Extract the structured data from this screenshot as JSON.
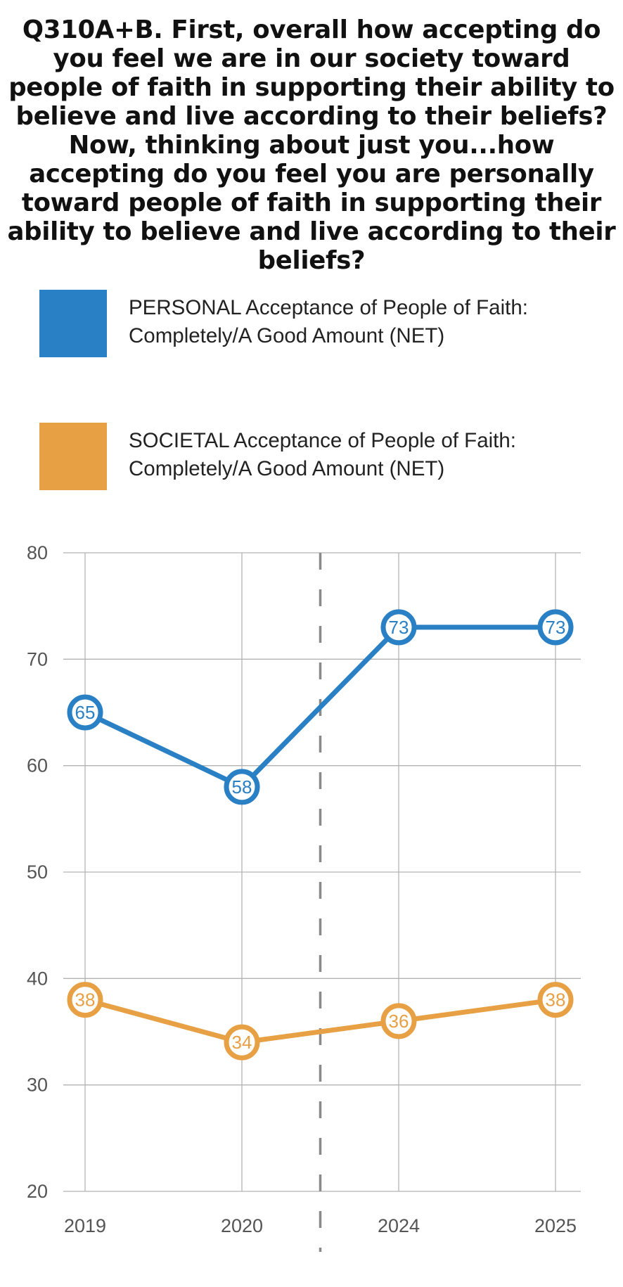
{
  "chart_data": {
    "type": "line",
    "title": "Q310A+B. First, overall how accepting do you feel we are in our society toward people of faith in supporting their ability to believe and live according to their beliefs?  Now, thinking about just you...how accepting do you feel you are personally toward people of faith in supporting their ability to believe and live according to their beliefs?",
    "categories": [
      "2019",
      "2020",
      "2024",
      "2025"
    ],
    "series": [
      {
        "name": "PERSONAL Acceptance of People of Faith: Completely/A Good Amount (NET)",
        "color": "#2a80c4",
        "values": [
          65,
          58,
          73,
          73
        ]
      },
      {
        "name": "SOCIETAL Acceptance of People of Faith: Completely/A Good Amount (NET)",
        "color": "#e8a044",
        "values": [
          38,
          34,
          36,
          38
        ]
      }
    ],
    "ylim": [
      20,
      80
    ],
    "yticks": [
      "20",
      "30",
      "40",
      "50",
      "60",
      "70",
      "80"
    ],
    "grid": true,
    "legend_position": "top",
    "divider": "dashed vertical line between 2020 and 2024"
  }
}
